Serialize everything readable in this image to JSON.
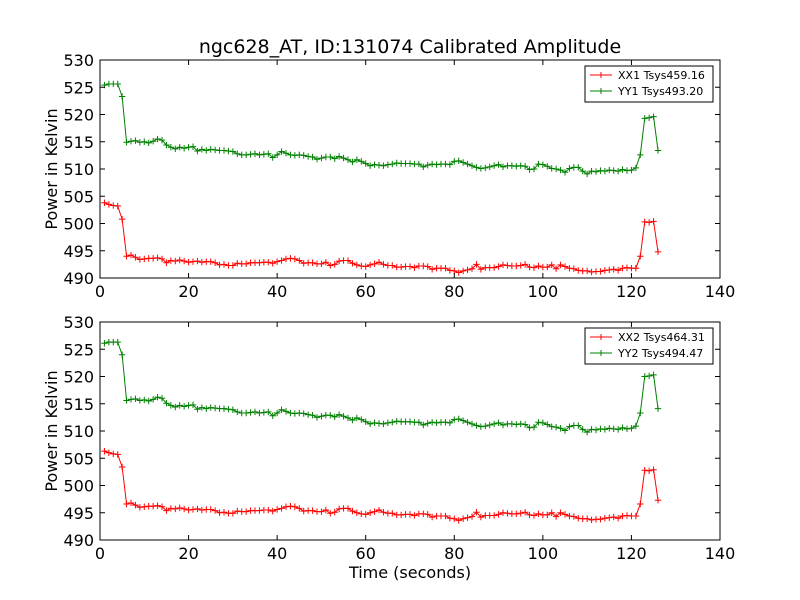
{
  "figure": {
    "title": "ngc628_AT, ID:131074 Calibrated Amplitude",
    "xlabel": "Time (seconds)"
  },
  "chart_data": [
    {
      "type": "line",
      "title": "ngc628_AT, ID:131074 Calibrated Amplitude",
      "xlabel": "",
      "ylabel": "Power in Kelvin",
      "xlim": [
        0,
        140
      ],
      "ylim": [
        490,
        530
      ],
      "xticks": [
        0,
        20,
        40,
        60,
        80,
        100,
        120,
        140
      ],
      "yticks": [
        490,
        495,
        500,
        505,
        510,
        515,
        520,
        525,
        530
      ],
      "grid": false,
      "legend_position": "top-right",
      "series": [
        {
          "name": "XX1 Tsys459.16",
          "color": "#ff0000",
          "marker": "plus",
          "x": [
            1,
            2,
            3,
            4,
            5,
            6,
            7,
            8,
            9,
            10,
            11,
            12,
            13,
            14,
            15,
            16,
            17,
            18,
            19,
            20,
            21,
            22,
            23,
            24,
            25,
            26,
            27,
            28,
            29,
            30,
            31,
            32,
            33,
            34,
            35,
            36,
            37,
            38,
            39,
            40,
            41,
            42,
            43,
            44,
            45,
            46,
            47,
            48,
            49,
            50,
            51,
            52,
            53,
            54,
            55,
            56,
            57,
            58,
            59,
            60,
            61,
            62,
            63,
            64,
            65,
            66,
            67,
            68,
            69,
            70,
            71,
            72,
            73,
            74,
            75,
            76,
            77,
            78,
            79,
            80,
            81,
            82,
            83,
            84,
            85,
            86,
            87,
            88,
            89,
            90,
            91,
            92,
            93,
            94,
            95,
            96,
            97,
            98,
            99,
            100,
            101,
            102,
            103,
            104,
            105,
            106,
            107,
            108,
            109,
            110,
            111,
            112,
            113,
            114,
            115,
            116,
            117,
            118,
            119,
            120,
            121,
            122,
            123,
            124,
            125,
            126
          ],
          "y": [
            503.8,
            503.5,
            503.3,
            503.2,
            500.8,
            494.0,
            494.2,
            493.8,
            493.4,
            493.5,
            493.6,
            493.6,
            493.7,
            493.5,
            492.8,
            493.2,
            493.1,
            493.3,
            493.1,
            492.9,
            493.0,
            493.1,
            492.9,
            493.0,
            493.0,
            492.8,
            492.4,
            492.5,
            492.3,
            492.3,
            492.7,
            492.6,
            492.6,
            492.8,
            492.8,
            492.8,
            492.9,
            492.9,
            492.7,
            493.0,
            493.2,
            493.5,
            493.6,
            493.5,
            493.2,
            492.7,
            492.8,
            492.8,
            492.6,
            492.6,
            492.9,
            492.3,
            492.5,
            493.1,
            493.2,
            493.2,
            492.7,
            492.4,
            492.2,
            492.1,
            492.4,
            492.6,
            492.9,
            492.5,
            492.3,
            492.3,
            492.0,
            492.0,
            492.1,
            492.1,
            491.9,
            492.2,
            492.2,
            492.1,
            491.6,
            491.8,
            491.8,
            491.8,
            491.4,
            491.3,
            491.0,
            491.3,
            491.5,
            491.7,
            492.5,
            491.6,
            491.9,
            491.9,
            491.9,
            492.1,
            492.4,
            492.3,
            492.2,
            492.2,
            492.3,
            492.5,
            492.0,
            491.9,
            492.2,
            492.0,
            492.0,
            492.4,
            491.7,
            492.4,
            492.1,
            491.8,
            491.7,
            491.4,
            491.3,
            491.3,
            491.1,
            491.2,
            491.2,
            491.4,
            491.5,
            491.6,
            491.4,
            491.8,
            491.9,
            491.8,
            491.8,
            494.0,
            500.3,
            500.2,
            500.4,
            494.8
          ]
        },
        {
          "name": "YY1 Tsys493.20",
          "color": "#008000",
          "marker": "plus",
          "x": [
            1,
            2,
            3,
            4,
            5,
            6,
            7,
            8,
            9,
            10,
            11,
            12,
            13,
            14,
            15,
            16,
            17,
            18,
            19,
            20,
            21,
            22,
            23,
            24,
            25,
            26,
            27,
            28,
            29,
            30,
            31,
            32,
            33,
            34,
            35,
            36,
            37,
            38,
            39,
            40,
            41,
            42,
            43,
            44,
            45,
            46,
            47,
            48,
            49,
            50,
            51,
            52,
            53,
            54,
            55,
            56,
            57,
            58,
            59,
            60,
            61,
            62,
            63,
            64,
            65,
            66,
            67,
            68,
            69,
            70,
            71,
            72,
            73,
            74,
            75,
            76,
            77,
            78,
            79,
            80,
            81,
            82,
            83,
            84,
            85,
            86,
            87,
            88,
            89,
            90,
            91,
            92,
            93,
            94,
            95,
            96,
            97,
            98,
            99,
            100,
            101,
            102,
            103,
            104,
            105,
            106,
            107,
            108,
            109,
            110,
            111,
            112,
            113,
            114,
            115,
            116,
            117,
            118,
            119,
            120,
            121,
            122,
            123,
            124,
            125,
            126
          ],
          "y": [
            525.4,
            525.6,
            525.6,
            525.6,
            523.3,
            514.9,
            515.1,
            515.2,
            514.9,
            515.0,
            514.8,
            515.1,
            515.5,
            515.3,
            514.4,
            514.0,
            513.7,
            514.0,
            513.8,
            514.0,
            514.1,
            513.3,
            513.6,
            513.4,
            513.6,
            513.5,
            513.4,
            513.4,
            513.3,
            513.2,
            512.8,
            512.6,
            512.6,
            512.7,
            512.8,
            512.6,
            512.7,
            512.8,
            512.1,
            512.6,
            513.2,
            512.9,
            512.6,
            512.5,
            512.6,
            512.5,
            512.3,
            512.2,
            511.8,
            512.0,
            512.2,
            512.2,
            511.9,
            512.3,
            512.0,
            511.7,
            511.3,
            511.7,
            511.4,
            511.0,
            510.6,
            510.8,
            510.7,
            510.6,
            510.8,
            510.9,
            511.1,
            511.0,
            511.0,
            511.0,
            510.9,
            510.9,
            510.4,
            510.7,
            510.9,
            510.8,
            510.9,
            510.9,
            510.8,
            511.4,
            511.5,
            511.2,
            510.9,
            510.6,
            510.3,
            510.1,
            510.2,
            510.4,
            510.6,
            510.8,
            510.4,
            510.6,
            510.6,
            510.5,
            510.6,
            510.5,
            509.9,
            510.0,
            510.9,
            510.8,
            510.5,
            510.1,
            510.0,
            509.8,
            509.4,
            510.1,
            510.3,
            510.3,
            509.6,
            509.1,
            509.6,
            509.5,
            509.7,
            509.6,
            509.8,
            509.7,
            509.6,
            509.9,
            509.7,
            509.8,
            510.2,
            512.6,
            519.3,
            519.4,
            519.6,
            513.4
          ]
        }
      ]
    },
    {
      "type": "line",
      "title": "",
      "xlabel": "Time (seconds)",
      "ylabel": "Power in Kelvin",
      "xlim": [
        0,
        140
      ],
      "ylim": [
        490,
        530
      ],
      "xticks": [
        0,
        20,
        40,
        60,
        80,
        100,
        120,
        140
      ],
      "yticks": [
        490,
        495,
        500,
        505,
        510,
        515,
        520,
        525,
        530
      ],
      "grid": false,
      "legend_position": "top-right",
      "series": [
        {
          "name": "XX2 Tsys464.31",
          "color": "#ff0000",
          "marker": "plus",
          "x": [
            1,
            2,
            3,
            4,
            5,
            6,
            7,
            8,
            9,
            10,
            11,
            12,
            13,
            14,
            15,
            16,
            17,
            18,
            19,
            20,
            21,
            22,
            23,
            24,
            25,
            26,
            27,
            28,
            29,
            30,
            31,
            32,
            33,
            34,
            35,
            36,
            37,
            38,
            39,
            40,
            41,
            42,
            43,
            44,
            45,
            46,
            47,
            48,
            49,
            50,
            51,
            52,
            53,
            54,
            55,
            56,
            57,
            58,
            59,
            60,
            61,
            62,
            63,
            64,
            65,
            66,
            67,
            68,
            69,
            70,
            71,
            72,
            73,
            74,
            75,
            76,
            77,
            78,
            79,
            80,
            81,
            82,
            83,
            84,
            85,
            86,
            87,
            88,
            89,
            90,
            91,
            92,
            93,
            94,
            95,
            96,
            97,
            98,
            99,
            100,
            101,
            102,
            103,
            104,
            105,
            106,
            107,
            108,
            109,
            110,
            111,
            112,
            113,
            114,
            115,
            116,
            117,
            118,
            119,
            120,
            121,
            122,
            123,
            124,
            125,
            126
          ],
          "y": [
            506.3,
            506.0,
            505.8,
            505.7,
            503.4,
            496.6,
            496.8,
            496.4,
            496.0,
            496.1,
            496.2,
            496.2,
            496.3,
            496.1,
            495.4,
            495.8,
            495.7,
            495.9,
            495.7,
            495.5,
            495.6,
            495.7,
            495.5,
            495.6,
            495.6,
            495.4,
            495.0,
            495.1,
            494.9,
            494.9,
            495.3,
            495.2,
            495.2,
            495.4,
            495.4,
            495.4,
            495.5,
            495.5,
            495.3,
            495.6,
            495.8,
            496.1,
            496.2,
            496.1,
            495.8,
            495.3,
            495.4,
            495.4,
            495.2,
            495.2,
            495.5,
            494.9,
            495.1,
            495.7,
            495.8,
            495.8,
            495.3,
            495.0,
            494.8,
            494.7,
            495.0,
            495.2,
            495.5,
            495.1,
            494.9,
            494.9,
            494.6,
            494.6,
            494.7,
            494.7,
            494.5,
            494.8,
            494.8,
            494.7,
            494.2,
            494.4,
            494.4,
            494.4,
            494.0,
            493.9,
            493.6,
            493.9,
            494.1,
            494.3,
            495.1,
            494.2,
            494.5,
            494.5,
            494.5,
            494.7,
            495.0,
            494.9,
            494.8,
            494.8,
            494.9,
            495.1,
            494.6,
            494.5,
            494.8,
            494.6,
            494.6,
            495.0,
            494.3,
            495.0,
            494.7,
            494.4,
            494.3,
            494.0,
            493.9,
            493.9,
            493.7,
            493.8,
            493.8,
            494.0,
            494.1,
            494.2,
            494.0,
            494.4,
            494.5,
            494.4,
            494.4,
            496.6,
            502.8,
            502.7,
            502.9,
            497.3
          ]
        },
        {
          "name": "YY2 Tsys494.47",
          "color": "#008000",
          "marker": "plus",
          "x": [
            1,
            2,
            3,
            4,
            5,
            6,
            7,
            8,
            9,
            10,
            11,
            12,
            13,
            14,
            15,
            16,
            17,
            18,
            19,
            20,
            21,
            22,
            23,
            24,
            25,
            26,
            27,
            28,
            29,
            30,
            31,
            32,
            33,
            34,
            35,
            36,
            37,
            38,
            39,
            40,
            41,
            42,
            43,
            44,
            45,
            46,
            47,
            48,
            49,
            50,
            51,
            52,
            53,
            54,
            55,
            56,
            57,
            58,
            59,
            60,
            61,
            62,
            63,
            64,
            65,
            66,
            67,
            68,
            69,
            70,
            71,
            72,
            73,
            74,
            75,
            76,
            77,
            78,
            79,
            80,
            81,
            82,
            83,
            84,
            85,
            86,
            87,
            88,
            89,
            90,
            91,
            92,
            93,
            94,
            95,
            96,
            97,
            98,
            99,
            100,
            101,
            102,
            103,
            104,
            105,
            106,
            107,
            108,
            109,
            110,
            111,
            112,
            113,
            114,
            115,
            116,
            117,
            118,
            119,
            120,
            121,
            122,
            123,
            124,
            125,
            126
          ],
          "y": [
            526.1,
            526.3,
            526.3,
            526.3,
            524.0,
            515.6,
            515.8,
            515.9,
            515.6,
            515.7,
            515.5,
            515.8,
            516.2,
            516.0,
            515.1,
            514.7,
            514.4,
            514.7,
            514.5,
            514.7,
            514.8,
            514.0,
            514.3,
            514.1,
            514.3,
            514.2,
            514.1,
            514.1,
            514.0,
            513.9,
            513.5,
            513.3,
            513.3,
            513.4,
            513.5,
            513.3,
            513.4,
            513.5,
            512.8,
            513.3,
            513.9,
            513.6,
            513.3,
            513.2,
            513.3,
            513.2,
            513.0,
            512.9,
            512.5,
            512.7,
            512.9,
            512.9,
            512.6,
            513.0,
            512.7,
            512.4,
            512.0,
            512.4,
            512.1,
            511.7,
            511.3,
            511.5,
            511.4,
            511.3,
            511.5,
            511.6,
            511.8,
            511.7,
            511.7,
            511.7,
            511.6,
            511.6,
            511.1,
            511.4,
            511.6,
            511.5,
            511.6,
            511.6,
            511.5,
            512.1,
            512.2,
            511.9,
            511.6,
            511.3,
            511.0,
            510.8,
            510.9,
            511.1,
            511.3,
            511.5,
            511.1,
            511.3,
            511.3,
            511.2,
            511.3,
            511.2,
            510.6,
            510.7,
            511.6,
            511.5,
            511.2,
            510.8,
            510.7,
            510.5,
            510.1,
            510.8,
            511.0,
            511.0,
            510.3,
            509.8,
            510.3,
            510.2,
            510.4,
            510.3,
            510.5,
            510.4,
            510.3,
            510.6,
            510.4,
            510.5,
            510.9,
            513.3,
            520.0,
            520.1,
            520.3,
            514.1
          ]
        }
      ]
    }
  ]
}
